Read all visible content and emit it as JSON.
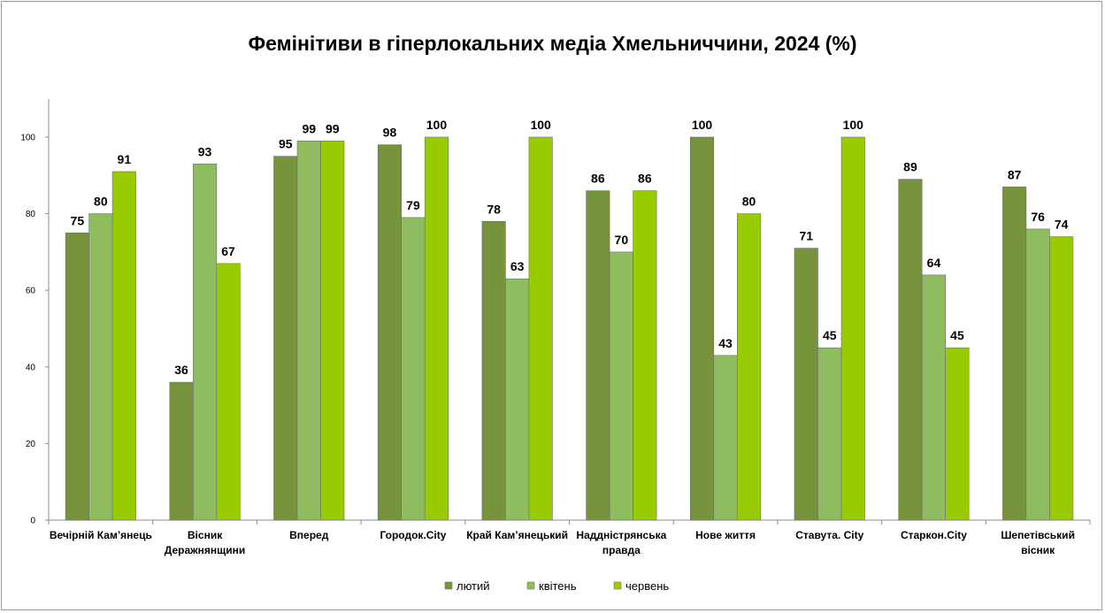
{
  "chart_data": {
    "type": "bar",
    "title": "Фемінітиви в гіперлокальних медіа Хмельниччини, 2024 (%)",
    "xlabel": "",
    "ylabel": "",
    "ylim": [
      0,
      100
    ],
    "yticks": [
      0,
      20,
      40,
      60,
      80,
      100
    ],
    "grid": false,
    "legend": "bottom",
    "categories": [
      [
        "Вечірній Кам’янець"
      ],
      [
        "Вісник",
        "Деражнянщини"
      ],
      [
        "Вперед"
      ],
      [
        "Городок.City"
      ],
      [
        "Край Кам’янецький"
      ],
      [
        "Наддністрянська",
        "правда"
      ],
      [
        "Нове життя"
      ],
      [
        "Ставута. City"
      ],
      [
        "Старкон.City"
      ],
      [
        "Шепетівський",
        "вісник"
      ]
    ],
    "series": [
      {
        "name": "лютий",
        "color": "#77933c",
        "values": [
          75,
          36,
          95,
          98,
          78,
          86,
          100,
          71,
          89,
          87
        ]
      },
      {
        "name": "квітень",
        "color": "#8fbc5e",
        "values": [
          80,
          93,
          99,
          79,
          63,
          70,
          43,
          45,
          64,
          76
        ]
      },
      {
        "name": "червень",
        "color": "#99cc00",
        "values": [
          91,
          67,
          99,
          100,
          100,
          86,
          80,
          100,
          45,
          74
        ]
      }
    ]
  }
}
